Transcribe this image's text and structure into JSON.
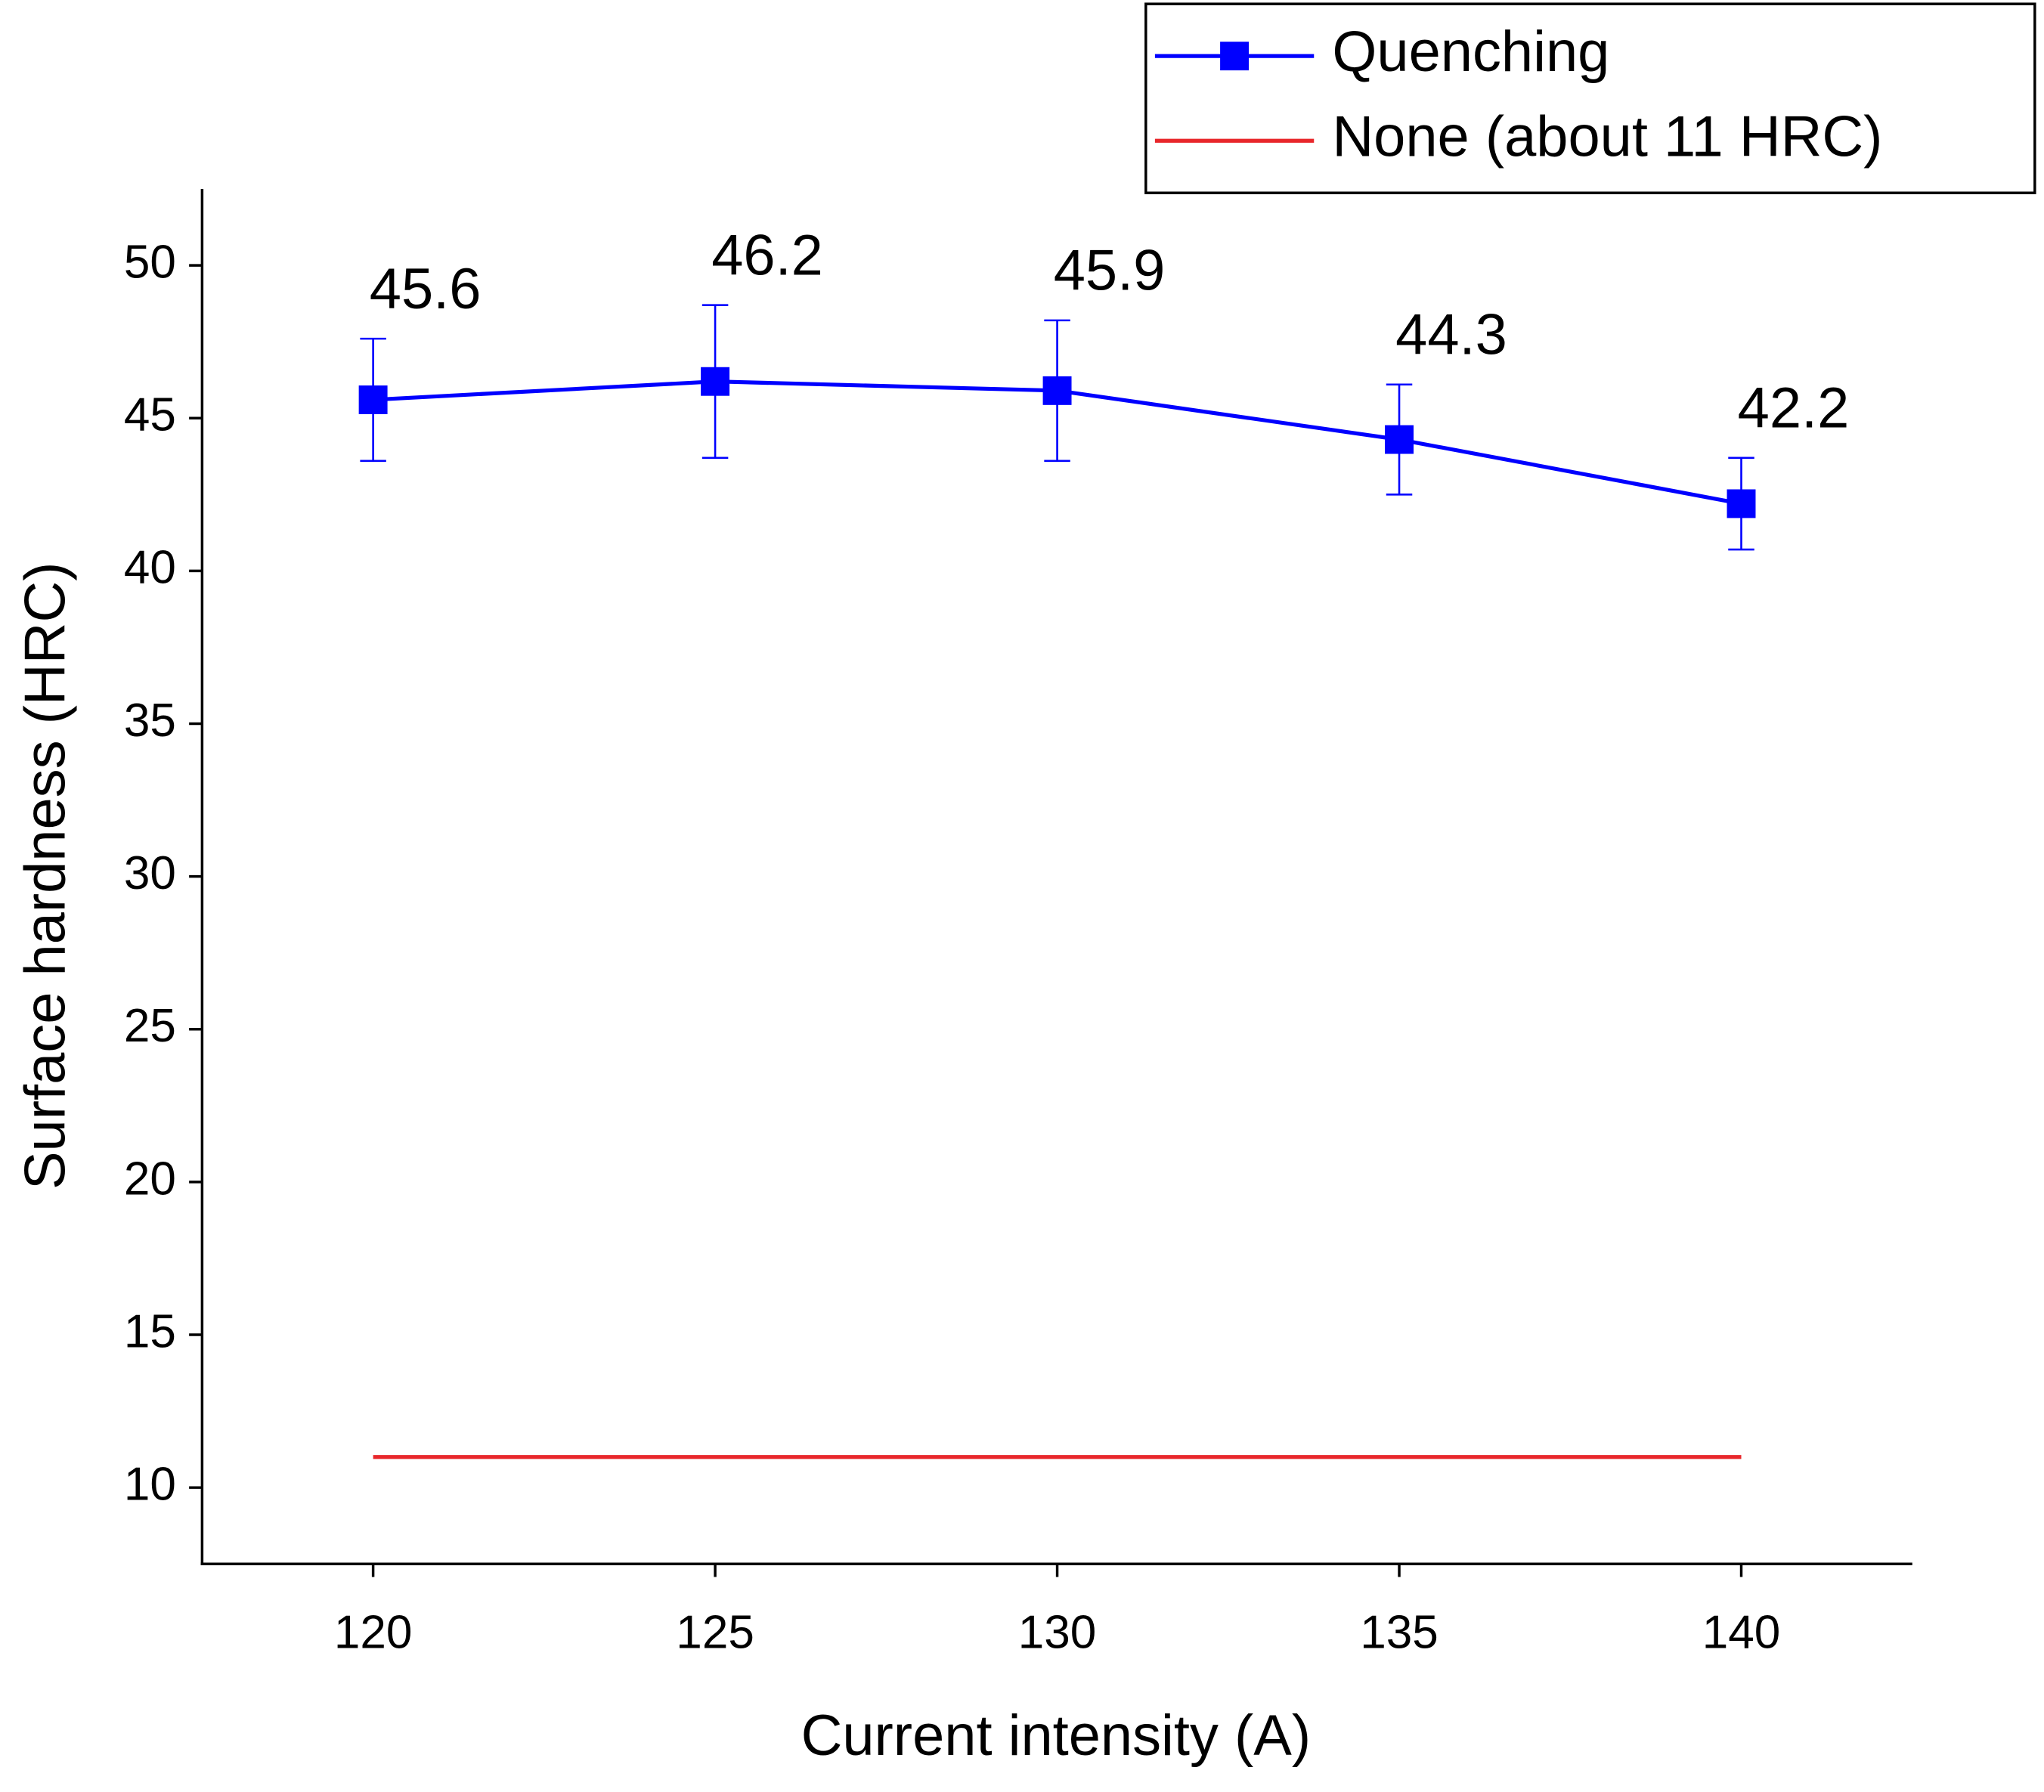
{
  "chart_data": {
    "type": "line",
    "x": [
      120,
      125,
      130,
      135,
      140
    ],
    "xlabel": "Current intensity (A)",
    "ylabel": "Surface hardness (HRC)",
    "series": [
      {
        "name": "Quenching",
        "color": "#0000ff",
        "marker": "square",
        "values": [
          45.6,
          46.2,
          45.9,
          44.3,
          42.2
        ],
        "errors": [
          2.0,
          2.5,
          2.3,
          1.8,
          1.5
        ],
        "data_labels": true
      },
      {
        "name": "None (about 11 HRC)",
        "color": "#e8272b",
        "values": [
          11,
          11,
          11,
          11,
          11
        ]
      }
    ],
    "xlim": [
      117.5,
      142.5
    ],
    "xticks": [
      120,
      125,
      130,
      135,
      140
    ],
    "ylim": [
      7.5,
      52.5
    ],
    "yticks": [
      10,
      15,
      20,
      25,
      30,
      35,
      40,
      45,
      50
    ],
    "legend": "top-right"
  }
}
